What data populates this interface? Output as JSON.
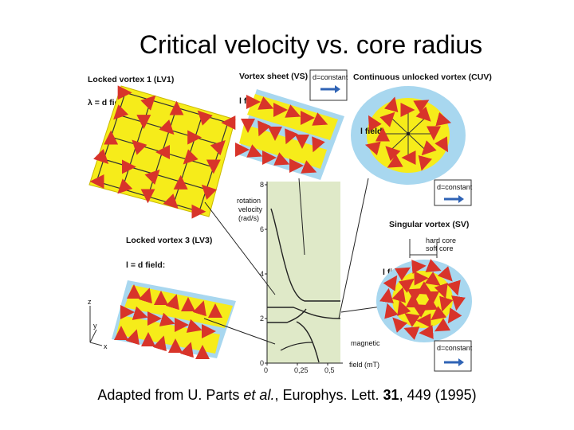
{
  "slide": {
    "title": "Critical velocity vs. core radius",
    "caption": {
      "prefix": "Adapted from U. Parts ",
      "et_al": "et al.",
      "journal": ", Europhys. Lett. ",
      "volume": "31",
      "rest": ", 449 (1995)"
    }
  },
  "figure": {
    "panels": {
      "lv1": {
        "title": "Locked vortex 1 (LV1)",
        "field_label": "λ = d field:"
      },
      "vs": {
        "title": "Vortex sheet (VS)",
        "field_label": "l field:",
        "box": "d=constant"
      },
      "cuv": {
        "title": "Continuous unlocked vortex (CUV)",
        "field_label": "l field:",
        "box": "d=constant"
      },
      "lv3": {
        "title": "Locked vortex 3 (LV3)",
        "field_label": "l = d field:"
      },
      "sv": {
        "title": "Singular vortex (SV)",
        "field_label": "l field:",
        "box": "d=constant",
        "hard_core": "hard core",
        "soft_core": "soft core"
      }
    },
    "plot": {
      "ylabel_lines": [
        "rotation",
        "velocity",
        "(rad/s)"
      ],
      "xlabel_lines": [
        "magnetic",
        "field (mT)"
      ],
      "yticks": [
        "0",
        "2",
        "4",
        "6",
        "8"
      ],
      "xticks": [
        "0",
        "0,25",
        "0,5"
      ]
    },
    "axes_labels": {
      "z": "z",
      "y": "y",
      "x": "x"
    },
    "colors": {
      "yellow": "#f6ec1a",
      "blue": "#a8d7ef",
      "arrow_red": "#d8342a",
      "plot_bg": "#dfe9c8",
      "box_arrow": "#2f63b5"
    }
  }
}
